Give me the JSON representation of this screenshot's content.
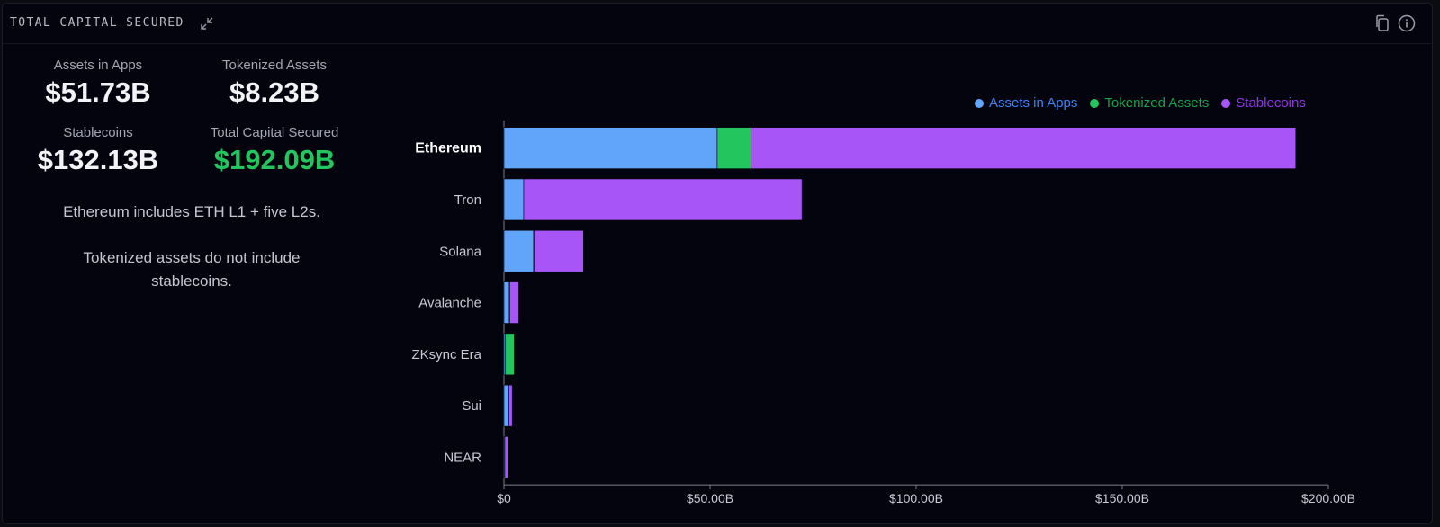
{
  "header": {
    "title": "TOTAL CAPITAL SECURED",
    "collapse_icon": "collapse-arrows-icon",
    "copy_icon": "copy-icon",
    "info_icon": "info-icon"
  },
  "stats": {
    "assets_in_apps": {
      "label": "Assets in Apps",
      "value": "$51.73B"
    },
    "tokenized_assets": {
      "label": "Tokenized Assets",
      "value": "$8.23B"
    },
    "stablecoins": {
      "label": "Stablecoins",
      "value": "$132.13B"
    },
    "total": {
      "label": "Total Capital Secured",
      "value": "$192.09B"
    }
  },
  "notes": {
    "ethereum": "Ethereum includes ETH L1 + five L2s.",
    "tokenized": "Tokenized assets do not include stablecoins."
  },
  "colors": {
    "assets_in_apps": "#60a5fa",
    "tokenized_assets": "#22c55e",
    "stablecoins": "#a855f7",
    "total_value": "#22c55e"
  },
  "chart_data": {
    "type": "bar",
    "orientation": "horizontal",
    "stacked": true,
    "categories": [
      "Ethereum",
      "Tron",
      "Solana",
      "Avalanche",
      "ZKsync Era",
      "Sui",
      "NEAR"
    ],
    "highlighted_category": "Ethereum",
    "series": [
      {
        "name": "Assets in Apps",
        "color": "#60a5fa",
        "values": [
          51.73,
          4.8,
          7.2,
          1.3,
          0.3,
          1.2,
          0.2
        ]
      },
      {
        "name": "Tokenized Assets",
        "color": "#22c55e",
        "values": [
          8.23,
          0.0,
          0.2,
          0.1,
          2.2,
          0.0,
          0.0
        ]
      },
      {
        "name": "Stablecoins",
        "color": "#a855f7",
        "values": [
          132.13,
          67.5,
          11.9,
          2.2,
          0.1,
          0.8,
          0.8
        ]
      }
    ],
    "xlim": [
      0,
      200
    ],
    "xticks": [
      "$0",
      "$50.00B",
      "$100.00B",
      "$150.00B",
      "$200.00B"
    ],
    "xtick_values": [
      0,
      50,
      100,
      150,
      200
    ],
    "legend_position": "top-right",
    "grid": false
  }
}
